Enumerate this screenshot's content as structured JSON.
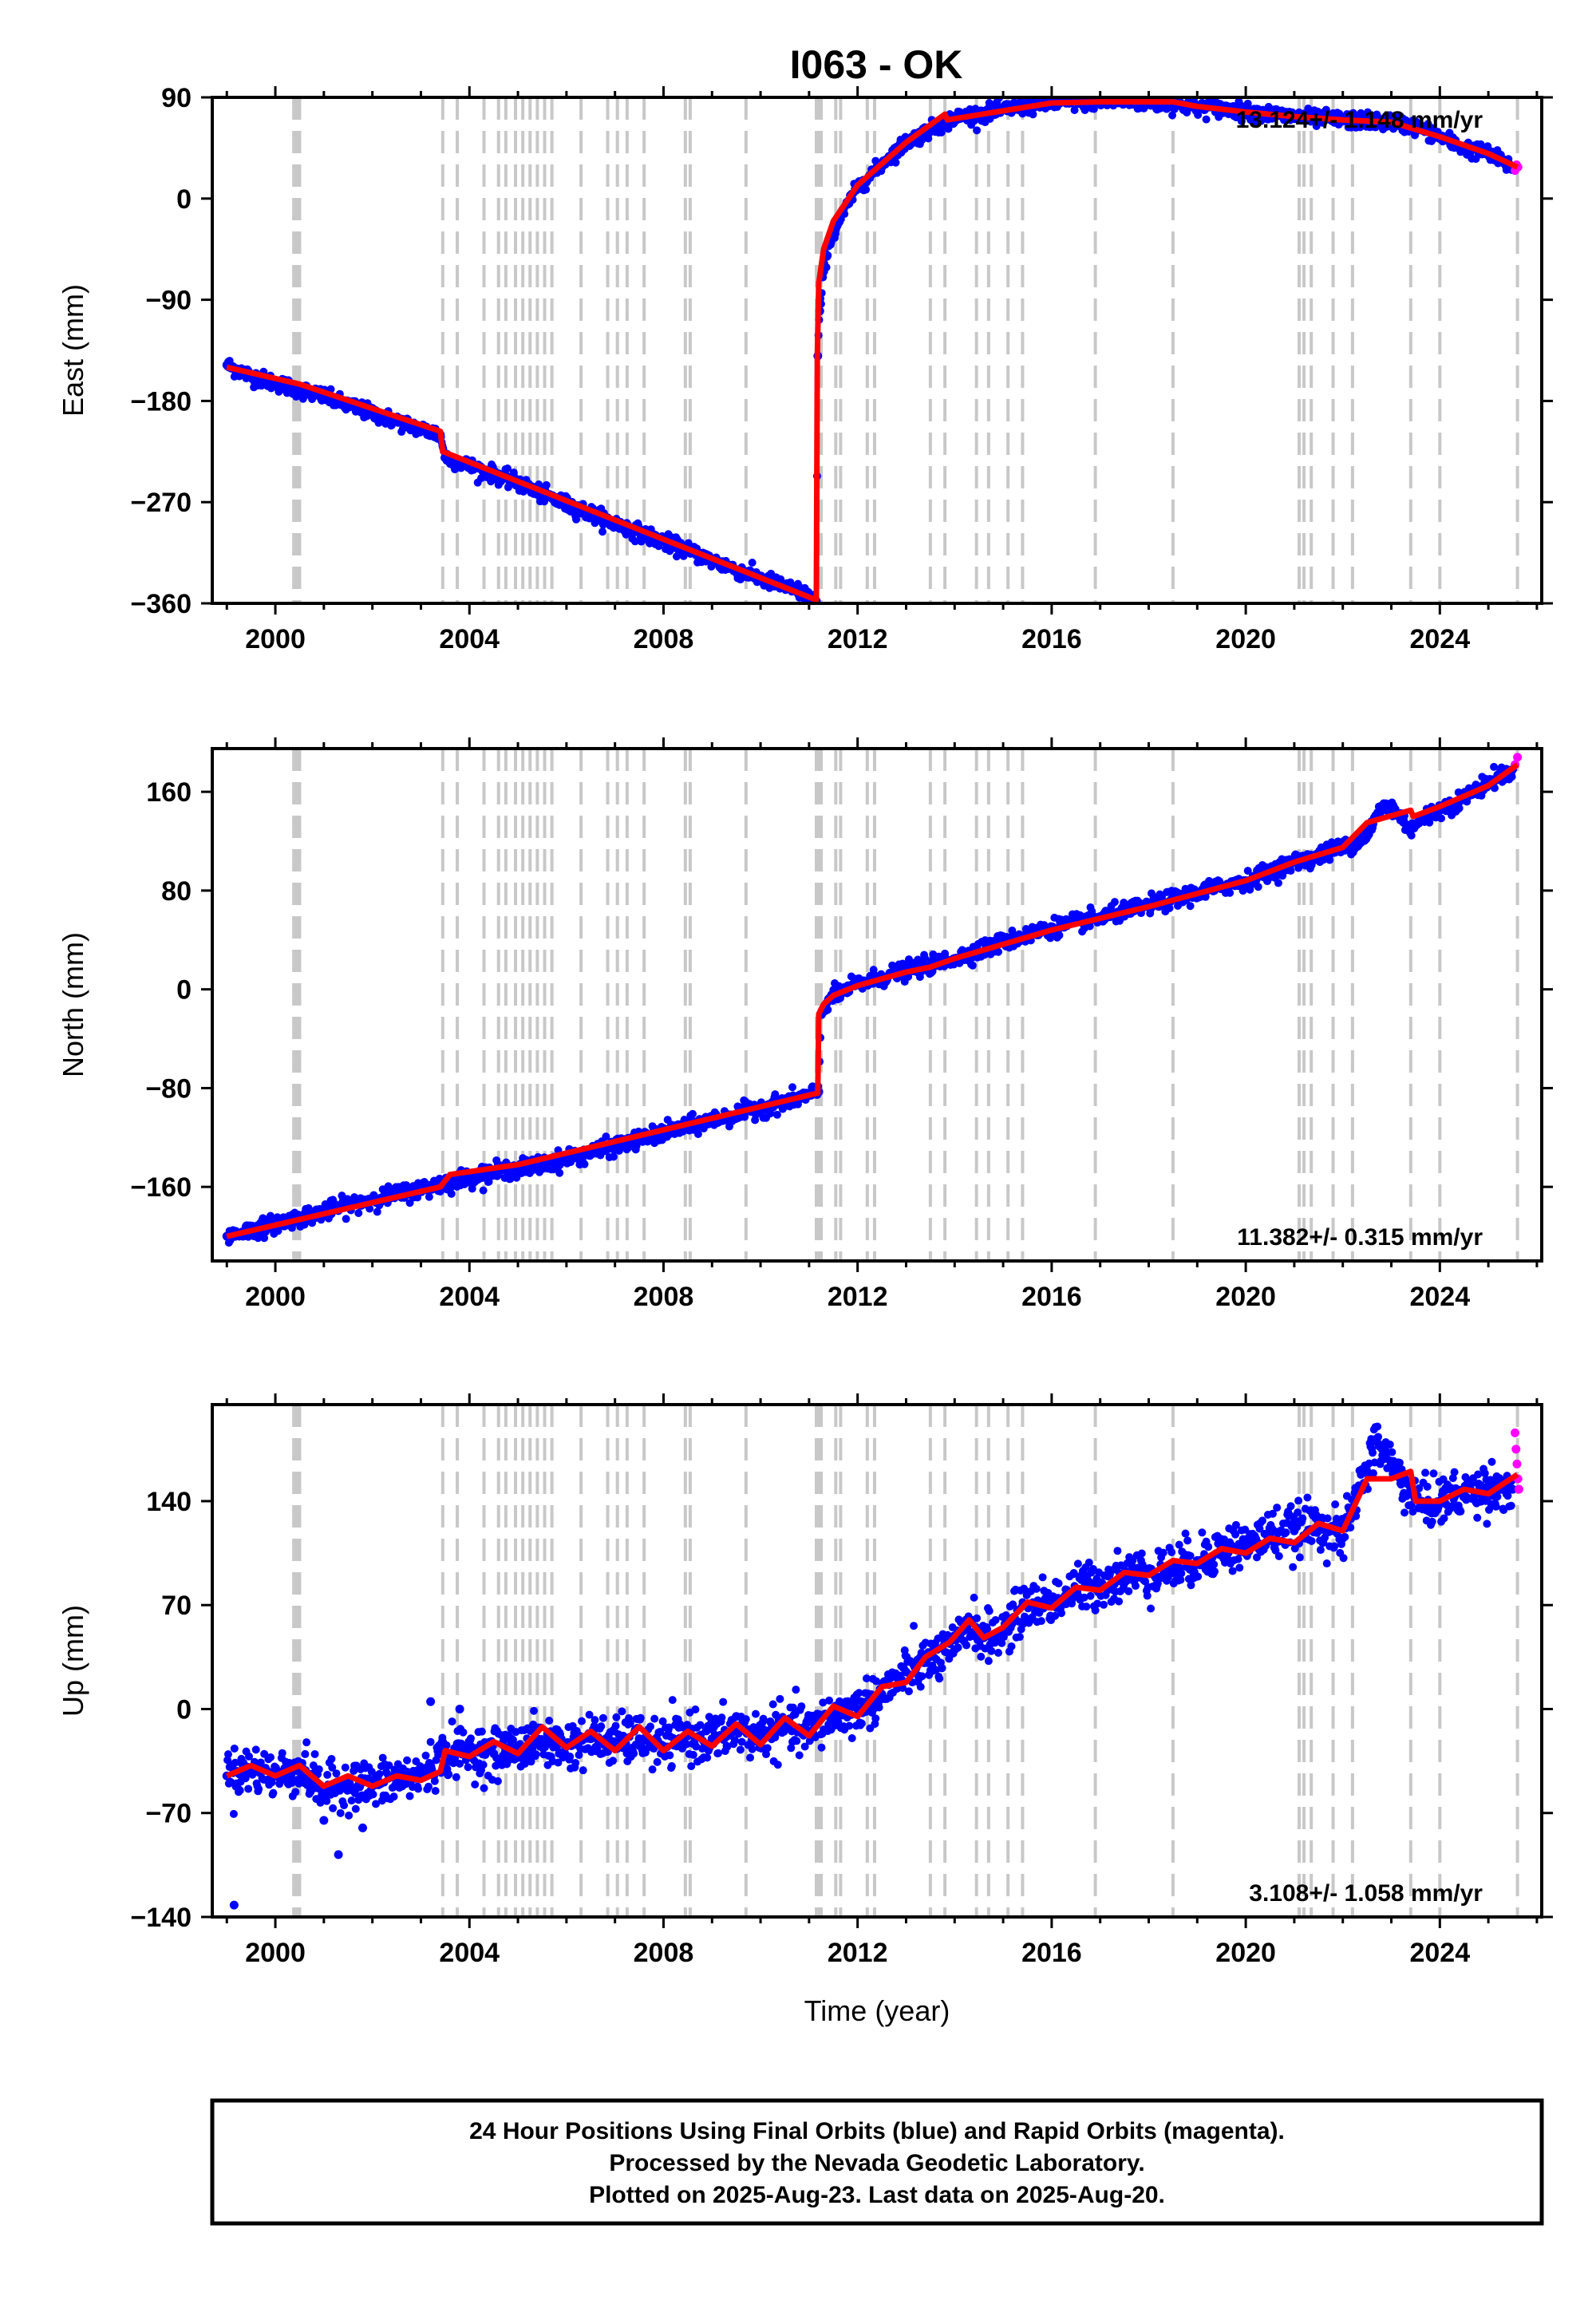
{
  "chart_data": [
    {
      "type": "scatter",
      "panel": "East",
      "title": "I063 - OK",
      "xlabel": "",
      "ylabel": "East (mm)",
      "xlim": [
        1998.7,
        2026.1
      ],
      "ylim": [
        -360,
        90
      ],
      "xticks": [
        2000,
        2004,
        2008,
        2012,
        2016,
        2020,
        2024
      ],
      "yticks": [
        -360,
        -270,
        -180,
        -90,
        0,
        90
      ],
      "rate_label": "13.124+/- 1.148 mm/yr",
      "series": [
        {
          "name": "Final Orbits",
          "color": "#0000ff",
          "x": [
            1999.0,
            1999.5,
            2000.0,
            2000.5,
            2001.0,
            2001.5,
            2002.0,
            2002.5,
            2003.0,
            2003.4,
            2003.5,
            2004.0,
            2004.5,
            2005.0,
            2005.5,
            2006.0,
            2006.5,
            2007.0,
            2007.5,
            2008.0,
            2008.5,
            2009.0,
            2009.5,
            2010.0,
            2010.5,
            2011.0,
            2011.15,
            2011.18,
            2011.22,
            2011.3,
            2011.4,
            2011.6,
            2011.8,
            2012.0,
            2012.3,
            2012.6,
            2013.0,
            2014.0,
            2014.5,
            2015.0,
            2015.5,
            2016.0,
            2016.5,
            2017.0,
            2017.5,
            2018.0,
            2018.5,
            2019.0,
            2019.5,
            2020.0,
            2020.5,
            2021.0,
            2021.5,
            2022.0,
            2022.5,
            2023.0,
            2023.5,
            2024.0,
            2024.5,
            2025.0,
            2025.3,
            2025.5
          ],
          "y": [
            -148,
            -158,
            -164,
            -170,
            -176,
            -184,
            -191,
            -198,
            -205,
            -210,
            -230,
            -238,
            -245,
            -253,
            -263,
            -272,
            -280,
            -289,
            -297,
            -305,
            -313,
            -322,
            -330,
            -338,
            -345,
            -353,
            -358,
            -140,
            -100,
            -65,
            -42,
            -22,
            -5,
            10,
            22,
            35,
            50,
            72,
            75,
            79,
            82,
            85,
            86,
            86,
            87,
            85,
            84,
            81,
            80,
            77,
            75,
            73,
            71,
            70,
            69,
            68,
            64,
            55,
            45,
            40,
            32,
            28
          ]
        },
        {
          "name": "Rapid Orbits",
          "color": "#ff00ff",
          "x": [
            2025.55,
            2025.58,
            2025.61
          ],
          "y": [
            25,
            30,
            28
          ]
        },
        {
          "name": "Model",
          "color": "#ff0000",
          "x": [
            1999.0,
            2000.5,
            2003.4,
            2003.45,
            2011.15,
            2011.17,
            2011.2,
            2011.3,
            2011.5,
            2012.0,
            2013.0,
            2013.8,
            2013.85,
            2016.0,
            2017.0,
            2018.5,
            2019.0,
            2020.0,
            2021.0,
            2022.0,
            2023.0,
            2024.0,
            2025.0,
            2025.6
          ],
          "y": [
            -150,
            -165,
            -207,
            -225,
            -357,
            -140,
            -75,
            -45,
            -20,
            12,
            50,
            75,
            70,
            85,
            86,
            86,
            82,
            77,
            73,
            70,
            68,
            55,
            40,
            28
          ]
        }
      ]
    },
    {
      "type": "scatter",
      "panel": "North",
      "xlabel": "",
      "ylabel": "North (mm)",
      "xlim": [
        1998.7,
        2026.1
      ],
      "ylim": [
        -220,
        195
      ],
      "xticks": [
        2000,
        2004,
        2008,
        2012,
        2016,
        2020,
        2024
      ],
      "yticks": [
        -160,
        -80,
        0,
        80,
        160
      ],
      "rate_label": "11.382+/- 0.315 mm/yr",
      "series": [
        {
          "name": "Final Orbits",
          "color": "#0000ff",
          "x": [
            1999.0,
            1999.5,
            2000.0,
            2000.5,
            2001.0,
            2001.5,
            2002.0,
            2002.5,
            2003.0,
            2003.5,
            2004.0,
            2004.5,
            2005.0,
            2005.5,
            2006.0,
            2006.5,
            2007.0,
            2007.5,
            2008.0,
            2008.5,
            2009.0,
            2009.5,
            2010.0,
            2010.5,
            2011.0,
            2011.2,
            2011.25,
            2011.4,
            2011.7,
            2012.0,
            2012.5,
            2013.0,
            2014.0,
            2015.0,
            2016.0,
            2017.0,
            2018.0,
            2019.0,
            2020.0,
            2020.5,
            2021.0,
            2021.5,
            2022.0,
            2022.5,
            2022.8,
            2023.0,
            2023.4,
            2023.6,
            2024.0,
            2024.5,
            2025.0,
            2025.5
          ],
          "y": [
            -200,
            -195,
            -190,
            -185,
            -180,
            -175,
            -170,
            -166,
            -162,
            -157,
            -152,
            -148,
            -145,
            -142,
            -137,
            -132,
            -127,
            -122,
            -116,
            -111,
            -106,
            -101,
            -96,
            -91,
            -86,
            -83,
            -20,
            -8,
            -2,
            4,
            10,
            15,
            25,
            38,
            50,
            58,
            68,
            78,
            88,
            95,
            103,
            108,
            115,
            125,
            148,
            148,
            130,
            138,
            145,
            155,
            168,
            178
          ]
        },
        {
          "name": "Rapid Orbits",
          "color": "#ff00ff",
          "x": [
            2025.55,
            2025.6
          ],
          "y": [
            182,
            188
          ]
        },
        {
          "name": "Model",
          "color": "#ff0000",
          "x": [
            1999.0,
            2003.4,
            2003.6,
            2005.0,
            2011.18,
            2011.2,
            2011.3,
            2011.5,
            2012.0,
            2013.0,
            2013.5,
            2014.0,
            2016.0,
            2018.0,
            2020.0,
            2021.0,
            2022.0,
            2022.5,
            2023.4,
            2023.45,
            2024.0,
            2025.0,
            2025.6
          ],
          "y": [
            -200,
            -160,
            -150,
            -142,
            -84,
            -20,
            -12,
            -5,
            3,
            14,
            18,
            25,
            48,
            67,
            88,
            103,
            115,
            135,
            145,
            140,
            148,
            165,
            182
          ]
        }
      ]
    },
    {
      "type": "scatter",
      "panel": "Up",
      "xlabel": "Time (year)",
      "ylabel": "Up (mm)",
      "xlim": [
        1998.7,
        2026.1
      ],
      "ylim": [
        -140,
        205
      ],
      "xticks": [
        2000,
        2004,
        2008,
        2012,
        2016,
        2020,
        2024
      ],
      "yticks": [
        -140,
        -70,
        0,
        70,
        140
      ],
      "rate_label": "3.108+/- 1.058 mm/yr",
      "series": [
        {
          "name": "Final Orbits",
          "color": "#0000ff",
          "x": [
            1999.0,
            1999.5,
            2000.0,
            2000.5,
            2001.0,
            2001.5,
            2002.0,
            2002.5,
            2003.0,
            2003.5,
            2004.0,
            2004.5,
            2005.0,
            2005.5,
            2006.0,
            2006.5,
            2007.0,
            2007.5,
            2008.0,
            2008.5,
            2009.0,
            2009.5,
            2010.0,
            2010.5,
            2011.0,
            2011.5,
            2012.0,
            2012.5,
            2013.0,
            2014.0,
            2014.3,
            2014.6,
            2015.0,
            2015.5,
            2016.0,
            2016.5,
            2017.0,
            2017.5,
            2018.0,
            2018.5,
            2019.0,
            2019.5,
            2020.0,
            2020.5,
            2021.0,
            2021.5,
            2022.0,
            2022.3,
            2022.7,
            2023.0,
            2023.4,
            2023.6,
            2024.0,
            2024.5,
            2025.0,
            2025.5
          ],
          "y": [
            -45,
            -40,
            -45,
            -40,
            -55,
            -50,
            -52,
            -48,
            -45,
            -30,
            -28,
            -30,
            -25,
            -22,
            -25,
            -20,
            -22,
            -20,
            -25,
            -18,
            -20,
            -15,
            -18,
            -12,
            -15,
            -5,
            0,
            10,
            25,
            40,
            60,
            48,
            52,
            70,
            72,
            80,
            85,
            90,
            92,
            95,
            100,
            108,
            110,
            118,
            120,
            125,
            115,
            145,
            180,
            165,
            145,
            138,
            140,
            145,
            150,
            148
          ]
        },
        {
          "name": "Outliers",
          "color": "#0000ff",
          "x": [
            1999.15,
            2001.0,
            2001.3,
            2001.8,
            2003.2,
            2003.8,
            2009.5
          ],
          "y": [
            -132,
            -75,
            -98,
            -80,
            5,
            0,
            -5
          ]
        },
        {
          "name": "Rapid Orbits",
          "color": "#ff00ff",
          "x": [
            2025.55,
            2025.57,
            2025.59,
            2025.61,
            2025.63
          ],
          "y": [
            186,
            175,
            165,
            155,
            148
          ]
        },
        {
          "name": "Model",
          "color": "#ff0000",
          "x": [
            1999.0,
            1999.5,
            2000.0,
            2000.5,
            2001.0,
            2001.5,
            2002.0,
            2002.5,
            2003.0,
            2003.4,
            2003.5,
            2004.0,
            2004.5,
            2005.0,
            2005.5,
            2006.0,
            2006.5,
            2007.0,
            2007.5,
            2008.0,
            2008.5,
            2009.0,
            2009.5,
            2010.0,
            2010.5,
            2011.0,
            2011.5,
            2012.0,
            2012.5,
            2013.0,
            2013.4,
            2013.9,
            2014.3,
            2014.6,
            2015.0,
            2015.5,
            2016.0,
            2016.5,
            2017.0,
            2017.5,
            2018.0,
            2018.5,
            2019.0,
            2019.5,
            2020.0,
            2020.5,
            2021.0,
            2021.5,
            2022.0,
            2022.5,
            2023.0,
            2023.4,
            2023.5,
            2024.0,
            2024.5,
            2025.0,
            2025.6
          ],
          "y": [
            -45,
            -38,
            -45,
            -38,
            -52,
            -45,
            -52,
            -45,
            -48,
            -42,
            -28,
            -32,
            -22,
            -30,
            -12,
            -26,
            -15,
            -28,
            -12,
            -28,
            -15,
            -25,
            -10,
            -24,
            -6,
            -18,
            2,
            -5,
            15,
            18,
            35,
            45,
            60,
            48,
            55,
            72,
            68,
            82,
            80,
            92,
            90,
            100,
            98,
            108,
            105,
            115,
            112,
            125,
            120,
            155,
            155,
            160,
            140,
            140,
            148,
            145,
            158
          ]
        }
      ]
    }
  ],
  "event_lines": [
    2000.38,
    2000.42,
    2000.46,
    2000.5,
    2003.45,
    2003.75,
    2004.3,
    2004.6,
    2004.75,
    2004.95,
    2005.1,
    2005.25,
    2005.4,
    2005.55,
    2005.7,
    2006.3,
    2006.85,
    2007.05,
    2007.25,
    2007.6,
    2008.45,
    2008.55,
    2009.7,
    2011.15,
    2011.2,
    2011.25,
    2011.55,
    2011.65,
    2012.2,
    2012.35,
    2013.5,
    2013.8,
    2014.45,
    2014.7,
    2015.1,
    2015.4,
    2016.9,
    2018.5,
    2021.1,
    2021.2,
    2021.35,
    2021.8,
    2022.2,
    2023.4,
    2024.0,
    2025.6
  ],
  "footer": {
    "line1": "24 Hour Positions Using Final Orbits (blue) and Rapid Orbits (magenta).",
    "line2": "Processed by the Nevada Geodetic Laboratory.",
    "line3": "Plotted on 2025-Aug-23. Last data on 2025-Aug-20."
  }
}
